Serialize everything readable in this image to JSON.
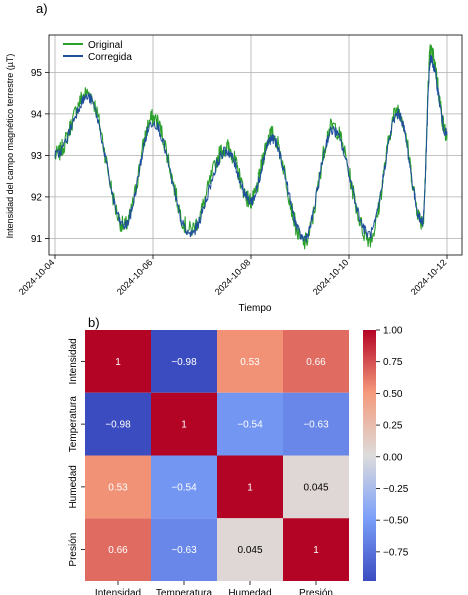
{
  "panel_a": {
    "label": "a)",
    "chart_data": {
      "type": "line",
      "xlabel": "Tiempo",
      "ylabel": "Intensidad del campo magnético terrestre (µT)",
      "x_range": [
        "2024-10-04",
        "2024-10-12"
      ],
      "x_ticks": [
        "2024-10-04",
        "2024-10-06",
        "2024-10-08",
        "2024-10-10",
        "2024-10-12"
      ],
      "ylim": [
        90.6,
        95.9
      ],
      "y_ticks": [
        91,
        92,
        93,
        94,
        95
      ],
      "grid": true,
      "legend_position": "top-left",
      "series": [
        {
          "name": "Original",
          "color": "#2ca02c",
          "x": [
            "2024-10-04 00:00",
            "2024-10-04 16:00",
            "2024-10-05 10:00",
            "2024-10-06 00:00",
            "2024-10-06 18:00",
            "2024-10-07 12:00",
            "2024-10-08 00:00",
            "2024-10-08 10:00",
            "2024-10-09 02:00",
            "2024-10-09 16:00",
            "2024-10-10 10:00",
            "2024-10-11 00:00",
            "2024-10-11 12:00",
            "2024-10-11 16:00",
            "2024-10-12 00:00"
          ],
          "y": [
            93.0,
            94.5,
            91.3,
            93.9,
            91.2,
            93.2,
            91.9,
            93.5,
            90.9,
            93.7,
            91.0,
            94.1,
            91.4,
            95.5,
            93.5
          ]
        },
        {
          "name": "Corregida",
          "color": "#1f4e9c",
          "x": [
            "2024-10-04 00:00",
            "2024-10-04 16:00",
            "2024-10-05 10:00",
            "2024-10-06 00:00",
            "2024-10-06 18:00",
            "2024-10-07 12:00",
            "2024-10-08 00:00",
            "2024-10-08 10:00",
            "2024-10-09 02:00",
            "2024-10-09 16:00",
            "2024-10-10 10:00",
            "2024-10-11 00:00",
            "2024-10-11 12:00",
            "2024-10-11 16:00",
            "2024-10-12 00:00"
          ],
          "y": [
            93.0,
            94.4,
            91.3,
            93.8,
            91.1,
            93.1,
            91.9,
            93.4,
            91.0,
            93.6,
            91.1,
            94.0,
            91.4,
            95.3,
            93.5
          ]
        }
      ]
    }
  },
  "panel_b": {
    "label": "b)",
    "chart_data": {
      "type": "heatmap",
      "rows": [
        "Intensidad",
        "Temperatura",
        "Humedad",
        "Presión"
      ],
      "cols": [
        "Intensidad",
        "Temperatura",
        "Humedad",
        "Presión"
      ],
      "values": [
        [
          1,
          -0.98,
          0.53,
          0.66
        ],
        [
          -0.98,
          1,
          -0.54,
          -0.63
        ],
        [
          0.53,
          -0.54,
          1,
          0.045
        ],
        [
          0.66,
          -0.63,
          0.045,
          1
        ]
      ],
      "cell_labels": [
        [
          "1",
          "−0.98",
          "0.53",
          "0.66"
        ],
        [
          "−0.98",
          "1",
          "−0.54",
          "−0.63"
        ],
        [
          "0.53",
          "−0.54",
          "1",
          "0.045"
        ],
        [
          "0.66",
          "−0.63",
          "0.045",
          "1"
        ]
      ],
      "colormap": "coolwarm",
      "vmin": -0.98,
      "vmax": 1.0,
      "colorbar_ticks": [
        1.0,
        0.75,
        0.5,
        0.25,
        0.0,
        -0.25,
        -0.5,
        -0.75
      ],
      "colorbar_tick_labels": [
        "1.00",
        "0.75",
        "0.50",
        "0.25",
        "0.00",
        "−0.25",
        "−0.50",
        "−0.75"
      ]
    }
  }
}
